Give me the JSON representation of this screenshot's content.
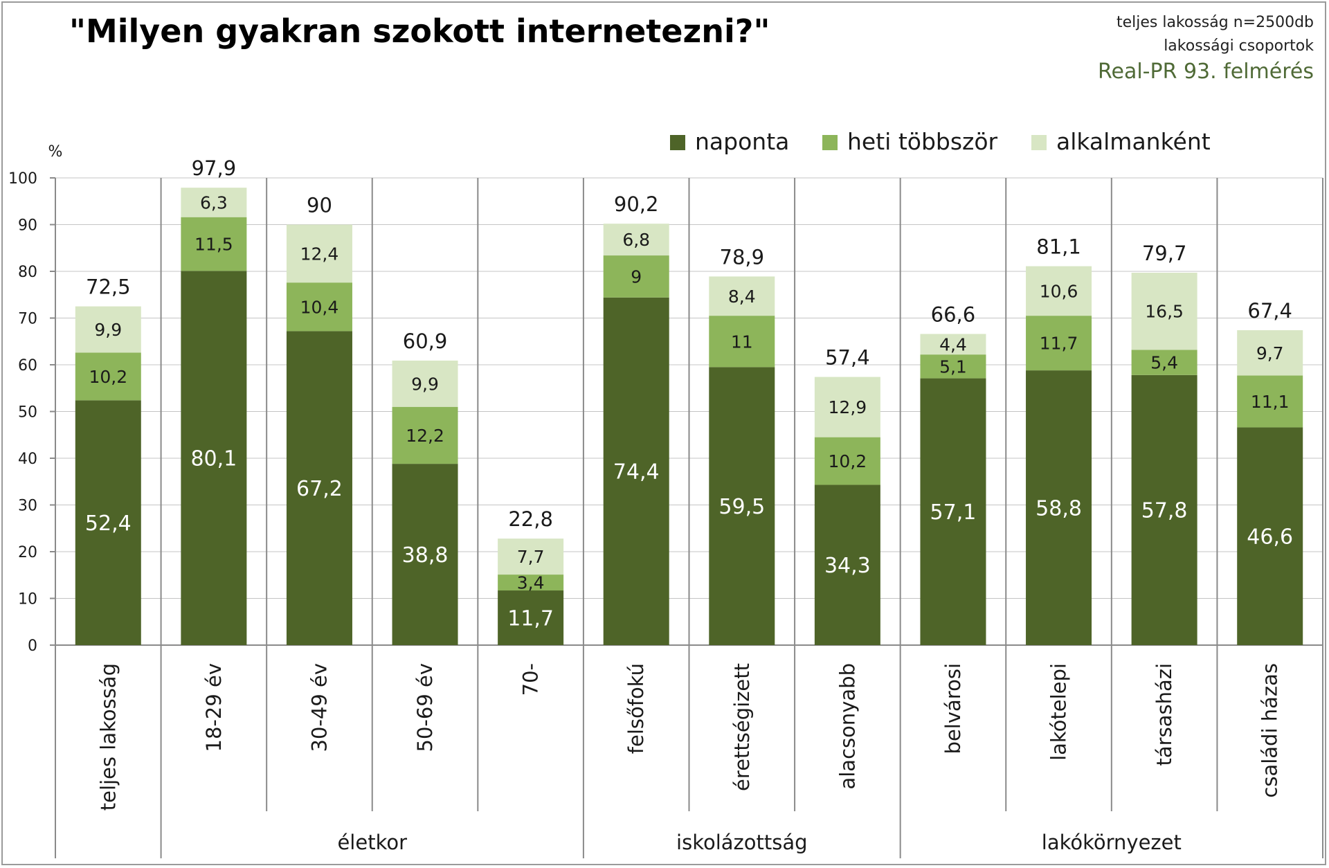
{
  "header": {
    "title": "\"Milyen gyakran szokott internetezni?\"",
    "info_lines": [
      "teljes lakosság n=2500db",
      "lakossági csoportok",
      "Real-PR 93. felmérés"
    ]
  },
  "colors": {
    "naponta": "#4e6428",
    "heti_tobbszor": "#8db55a",
    "alkalmankent": "#d8e6c4",
    "axis": "#8a8a8a"
  },
  "chart_data": {
    "type": "bar",
    "stacked": true,
    "ylabel": "%",
    "ylim": [
      0,
      100
    ],
    "yticks": [
      0,
      10,
      20,
      30,
      40,
      50,
      60,
      70,
      80,
      90,
      100
    ],
    "legend_position": "top-right",
    "categories": [
      "teljes lakosság",
      "18-29 év",
      "30-49 év",
      "50-69 év",
      "70-",
      "felsőfokú",
      "érettségizett",
      "alacsonyabb",
      "belvárosi",
      "lakótelepi",
      "társasházi",
      "családi házas"
    ],
    "series": [
      {
        "name": "naponta",
        "values": [
          52.4,
          80.1,
          67.2,
          38.8,
          11.7,
          74.4,
          59.5,
          34.3,
          57.1,
          58.8,
          57.8,
          46.6
        ]
      },
      {
        "name": "heti többször",
        "values": [
          10.2,
          11.5,
          10.4,
          12.2,
          3.4,
          9,
          11,
          10.2,
          5.1,
          11.7,
          5.4,
          11.1
        ]
      },
      {
        "name": "alkalmanként",
        "values": [
          9.9,
          6.3,
          12.4,
          9.9,
          7.7,
          6.8,
          8.4,
          12.9,
          4.4,
          10.6,
          16.5,
          9.7
        ]
      }
    ],
    "series_labels": [
      [
        "52,4",
        "80,1",
        "67,2",
        "38,8",
        "11,7",
        "74,4",
        "59,5",
        "34,3",
        "57,1",
        "58,8",
        "57,8",
        "46,6"
      ],
      [
        "10,2",
        "11,5",
        "10,4",
        "12,2",
        "3,4",
        "9",
        "11",
        "10,2",
        "5,1",
        "11,7",
        "5,4",
        "11,1"
      ],
      [
        "9,9",
        "6,3",
        "12,4",
        "9,9",
        "7,7",
        "6,8",
        "8,4",
        "12,9",
        "4,4",
        "10,6",
        "16,5",
        "9,7"
      ]
    ],
    "totals": [
      72.5,
      97.9,
      90,
      60.9,
      22.8,
      90.2,
      78.9,
      57.4,
      66.6,
      81.1,
      79.7,
      67.4
    ],
    "total_labels": [
      "72,5",
      "97,9",
      "90",
      "60,9",
      "22,8",
      "90,2",
      "78,9",
      "57,4",
      "66,6",
      "81,1",
      "79,7",
      "67,4"
    ],
    "groups": [
      {
        "label": "",
        "from": 0,
        "to": 0
      },
      {
        "label": "életkor",
        "from": 1,
        "to": 4
      },
      {
        "label": "iskolázottság",
        "from": 5,
        "to": 7
      },
      {
        "label": "lakókörnyezet",
        "from": 8,
        "to": 11
      }
    ]
  }
}
